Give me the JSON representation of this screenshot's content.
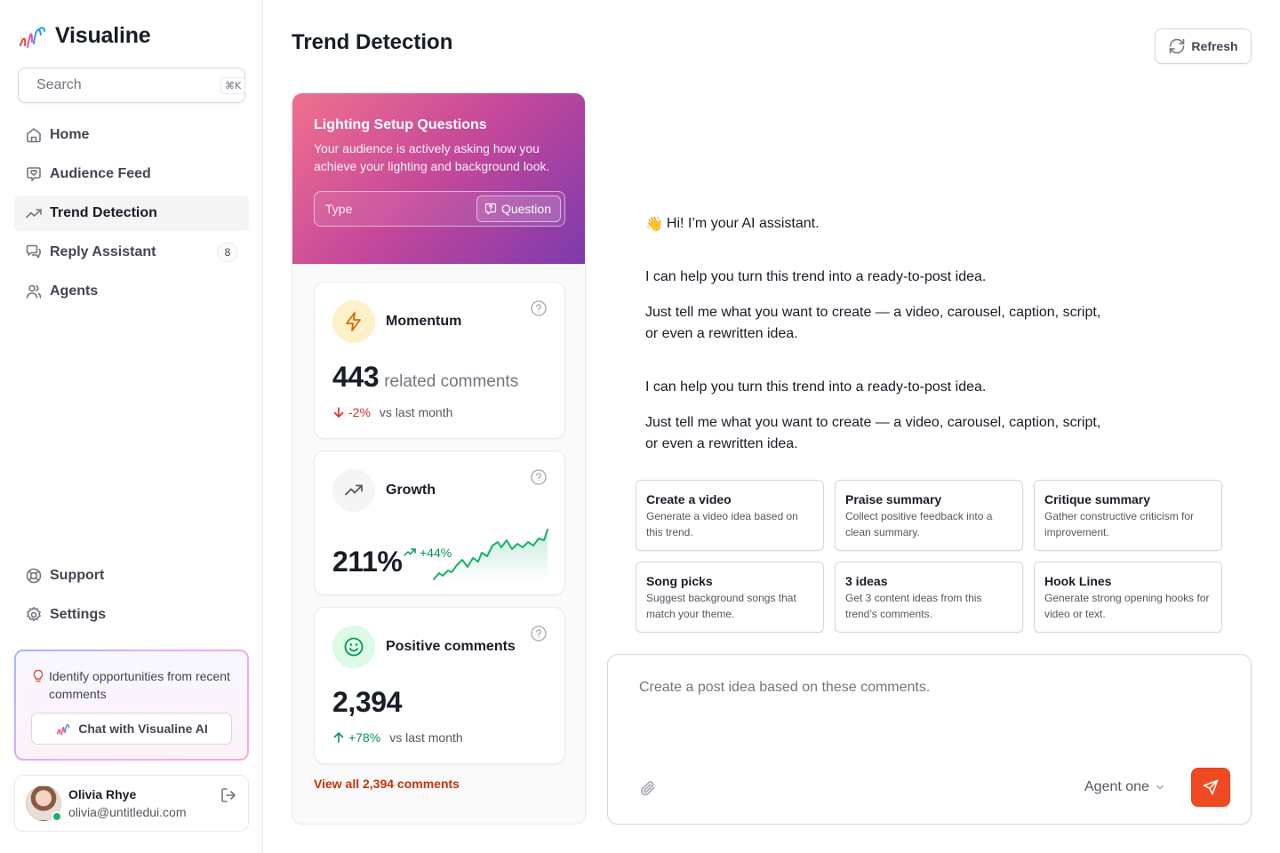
{
  "app": {
    "name": "Visualine"
  },
  "search": {
    "placeholder": "Search",
    "shortcut": "⌘K"
  },
  "nav": {
    "items": [
      {
        "label": "Home",
        "icon": "home-icon"
      },
      {
        "label": "Audience Feed",
        "icon": "message-heart-icon"
      },
      {
        "label": "Trend Detection",
        "icon": "trend-up-icon",
        "active": true
      },
      {
        "label": "Reply Assistant",
        "icon": "messages-icon",
        "badge": "8"
      },
      {
        "label": "Agents",
        "icon": "users-icon"
      }
    ],
    "bottom": [
      {
        "label": "Support",
        "icon": "life-buoy-icon"
      },
      {
        "label": "Settings",
        "icon": "gear-icon"
      }
    ]
  },
  "promo": {
    "text": "Identify opportunities from recent comments",
    "button": "Chat with Visualine AI"
  },
  "user": {
    "name": "Olivia Rhye",
    "email": "olivia@untitledui.com",
    "status": "online"
  },
  "page": {
    "title": "Trend Detection",
    "refresh": "Refresh"
  },
  "trend": {
    "title": "Lighting Setup Questions",
    "description": "Your audience is actively asking how you achieve your lighting and background look.",
    "type_label": "Type",
    "type_value": "Question",
    "view_all": "View all 2,394 comments",
    "metrics": {
      "momentum": {
        "name": "Momentum",
        "value": "443",
        "unit": "related comments",
        "change": "-2%",
        "vs": "vs last month"
      },
      "growth": {
        "name": "Growth",
        "value": "211%",
        "change": "+44%"
      },
      "positive": {
        "name": "Positive comments",
        "value": "2,394",
        "change": "+78%",
        "vs": "vs last month"
      }
    },
    "colors": {
      "positive": "#079455",
      "negative": "#d92d20",
      "accent": "#c4320a"
    }
  },
  "chat": {
    "greeting_emoji": "👋",
    "greeting": "Hi! I’m your AI assistant.",
    "messages": [
      {
        "line1": "I can help you turn this trend into a ready-to-post idea.",
        "line2": "Just tell me what you want to create — a video, carousel, caption, script, or even a rewritten idea."
      },
      {
        "line1": "I can help you turn this trend into a ready-to-post idea.",
        "line2": "Just tell me what you want to create — a video, carousel, caption, script, or even a rewritten idea."
      }
    ],
    "suggestions": [
      {
        "title": "Create a video",
        "desc": "Generate a video idea based on this trend."
      },
      {
        "title": "Praise summary",
        "desc": "Collect positive feedback into a clean summary."
      },
      {
        "title": "Critique summary",
        "desc": "Gather constructive criticism for improvement."
      },
      {
        "title": "Song picks",
        "desc": "Suggest background songs that match your theme."
      },
      {
        "title": "3 ideas",
        "desc": "Get 3 content ideas from this trend’s comments."
      },
      {
        "title": "Hook Lines",
        "desc": "Generate strong opening hooks for video or text."
      }
    ],
    "input_placeholder": "Create a post idea based on these comments.",
    "agent": "Agent one",
    "send_color": "#f04a23"
  }
}
